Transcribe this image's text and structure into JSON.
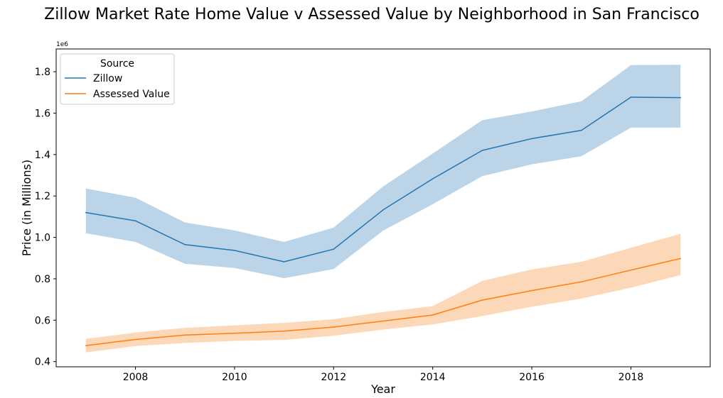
{
  "chart_data": {
    "type": "line",
    "title": "Zillow Market Rate Home Value v Assessed Value by Neighborhood in San Francisco",
    "xlabel": "Year",
    "ylabel": "Price (in Millions)",
    "y_offset_label": "1e6",
    "xlim": [
      2006.4,
      2019.6
    ],
    "ylim": [
      375000,
      1910000
    ],
    "x_ticks": [
      2008,
      2010,
      2012,
      2014,
      2016,
      2018
    ],
    "y_ticks": [
      400000,
      600000,
      800000,
      1000000,
      1200000,
      1400000,
      1600000,
      1800000
    ],
    "y_tick_labels": [
      "0.4",
      "0.6",
      "0.8",
      "1.0",
      "1.2",
      "1.4",
      "1.6",
      "1.8"
    ],
    "grid": false,
    "legend": {
      "title": "Source",
      "placement": "top-left"
    },
    "x": [
      2007,
      2008,
      2009,
      2010,
      2011,
      2012,
      2013,
      2014,
      2015,
      2016,
      2017,
      2018,
      2019
    ],
    "series": [
      {
        "name": "Zillow",
        "color": "#1f77b4",
        "band_color": "#bcd4e8",
        "values": [
          1120000,
          1080000,
          965000,
          937000,
          882000,
          943000,
          1133000,
          1283000,
          1420000,
          1477000,
          1517000,
          1677000,
          1675000
        ],
        "ci_lower": [
          1020000,
          978000,
          872000,
          852000,
          803000,
          847000,
          1033000,
          1160000,
          1296000,
          1353000,
          1392000,
          1530000,
          1530000
        ],
        "ci_upper": [
          1236000,
          1192000,
          1072000,
          1034000,
          978000,
          1047000,
          1246000,
          1405000,
          1566000,
          1608000,
          1657000,
          1832000,
          1834000
        ]
      },
      {
        "name": "Assessed Value",
        "color": "#ff7f0e",
        "band_color": "#fcd7b8",
        "values": [
          477000,
          507000,
          528000,
          537000,
          547000,
          567000,
          596000,
          625000,
          697000,
          743000,
          785000,
          842000,
          898000
        ],
        "ci_lower": [
          445000,
          475000,
          490000,
          500000,
          505000,
          525000,
          555000,
          580000,
          620000,
          665000,
          705000,
          757000,
          818000
        ],
        "ci_upper": [
          510000,
          540000,
          563000,
          575000,
          587000,
          605000,
          640000,
          668000,
          790000,
          845000,
          882000,
          950000,
          1017000
        ]
      }
    ]
  }
}
